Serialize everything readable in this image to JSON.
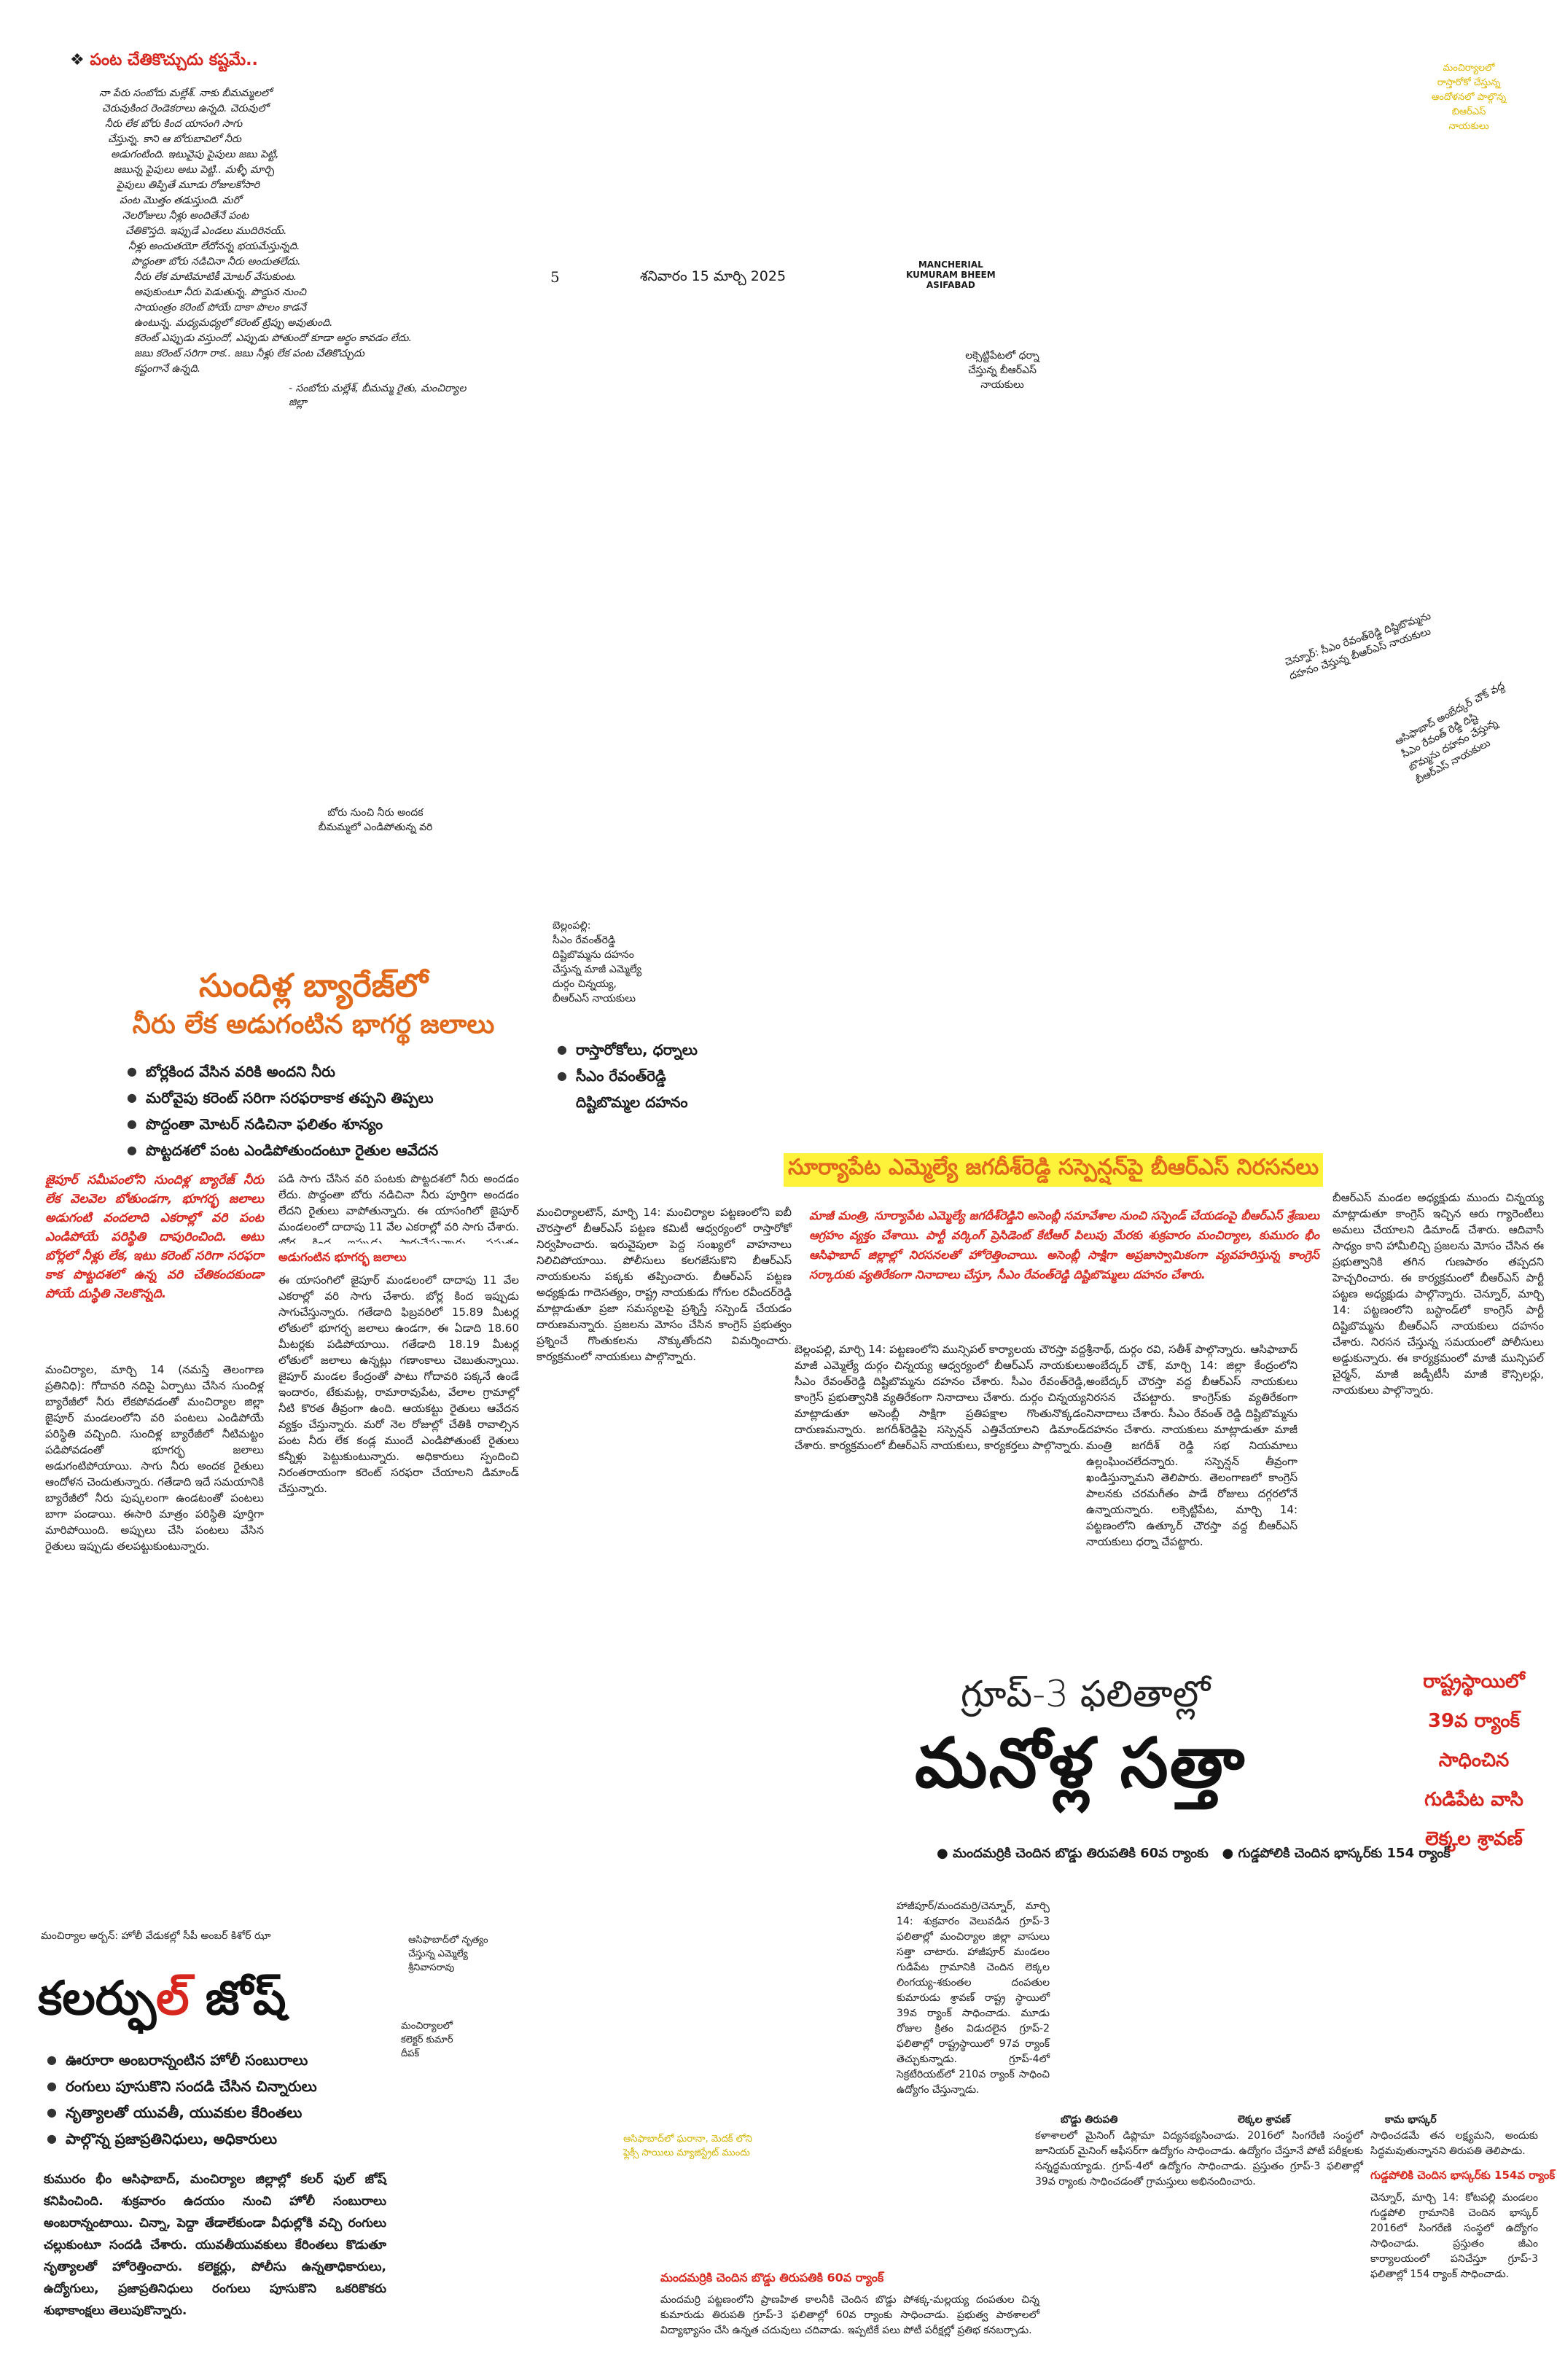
{
  "header": {
    "page_number": "5",
    "date": "శనివారం 15 మార్చి 2025",
    "edition_line1": "MANCHERIAL",
    "edition_line2": "KUMURAM BHEEM",
    "edition_line3": "ASIFABAD"
  },
  "top_quote": {
    "title": "పంట చేతికొచ్చుదు కష్టమే..",
    "lines": [
      "నా పేరు సంబోదు మల్లేశ్. నాకు బీమమ్మలలో",
      "చెరువుకింద రెండెకరాలు ఉన్నది. చెరువులో",
      "నీరు లేక బోరు కింద యాసంగి సాగు",
      "చేస్తున్న. కాని ఆ బోరుబావిలో నీరు",
      "అడుగంటింది. ఇటువైపు పైపులు జబు పెట్టి,",
      "జబున్న పైపులు అటు పెట్టి.. మళ్ళీ మార్చి",
      "పైపులు తిప్పితే మూడు రోజులకోసారి",
      "పంట మొత్తం తడుస్తుంది. మరో",
      "నెలరోజులు నీళ్లు అందితేనే పంట",
      "చేతికొస్తది. ఇప్పుడే ఎండలు ముదిరినయ్.",
      "నీళ్లు అందుతయో లేదోనన్న భయమేస్తున్నది.",
      "పొద్దంతా బోరు నడిచినా నీరు అందుతలేదు.",
      "నీరు లేక మాటిమాటికీ మోటర్ వేసుకుంట.",
      "అపుకుంటూ నీరు పెడుతున్న. పొద్దున నుంచి",
      "సాయంత్రం కరెంట్ పోయే దాకా పొలం కాడనే",
      "ఉంటున్న. మధ్యమధ్యలో కరెంట్ ట్రిప్పు అవుతుంది.",
      "కరెంట్ ఎప్పుడు వస్తుందో, ఎప్పుడు పోతుందో కూడా అర్థం కావడం లేదు.",
      "జబు కరెంట్ సరిగా రాక.. జబు నీళ్లు లేక పంట చేతికొచ్చుదు",
      "కష్టంగానే ఉన్నది."
    ],
    "attribution": "- సంబోదు మల్లేశ్, బీమమ్మ రైతు, మంచిర్యాల జిల్లా"
  },
  "top_right_caption": {
    "lines": [
      "మంచిర్యాలలో",
      "రాస్తారోకో చేస్తున్న",
      "ఆందోళనలో పాల్గొన్న",
      "బిఆర్ఎస్",
      "నాయకులు"
    ]
  },
  "photo_caption_bellampalli": {
    "lines": [
      "లక్సెట్టిపేటలో ధర్నా",
      "చేస్తున్న బీఆర్ఎస్",
      "నాయకులు"
    ]
  },
  "rotated_caption_1": {
    "lines": [
      "చెన్నూర్: సీఎం రేవంత్‌రెడ్డి దిష్టిబొమ్మను",
      "దహనం చేస్తున్న బీఆర్ఎస్ నాయకులు"
    ]
  },
  "rotated_caption_2": {
    "lines": [
      "ఆసిఫాబాద్ అంబేద్కర్ చౌక్ వద్ద",
      "సీఎం రేవంత్ రెడ్డి దిష్టి",
      "బొమ్మను దహనం చేస్తున్న",
      "బీఆర్ఎస్ నాయకులు"
    ]
  },
  "photo_caption_bore": {
    "lines": [
      "బోరు నుంచి నీరు అందక",
      "బీమమ్మలో ఎండిపోతున్న వరి"
    ]
  },
  "photo_caption_bellampalli2": {
    "lines": [
      "బెల్లంపల్లి:",
      "సీఎం రేవంత్‌రెడ్డి",
      "దిష్టిబొమ్మను దహనం",
      "చేస్తున్న మాజీ ఎమ్మెల్యే",
      "దుర్గం చిన్నయ్య,",
      "బీఆర్ఎస్ నాయకులు"
    ]
  },
  "story1": {
    "headline_line1": "సుందిళ్ల బ్యారేజ్‌లో",
    "headline_line2": "నీరు లేక అడుగంటిన భాగర్థ జలాలు",
    "bullets": [
      "బోర్లకింద వేసిన వరికి అందని నీరు",
      "మరోవైపు కరెంట్ సరిగా సరఫరాకాక తప్పని తిప్పలు",
      "పొద్దంతా మోటర్ నడిచినా ఫలితం శూన్యం",
      "పొట్టదశలో పంట ఎండిపోతుందంటూ రైతుల ఆవేదన"
    ],
    "intro": "జైపూర్ సమీపంలోని సుందిళ్ల బ్యారేజ్ నీరు లేక వెలవెల బోతుండగా, భూగర్భ జలాలు అడుగంటి వందలాది ఎకరాల్లో వరి పంట ఎండిపోయే పరిస్థితి దాపురించింది. అటు బోర్లలో నీళ్లు లేక, ఇటు కరెంట్ సరిగా సరఫరా కాక పొట్టదశలో ఉన్న వరి చేతికందకుండా పోయే దుస్థితి నెలకొన్నది.",
    "col1": "మంచిర్యాల, మార్చి 14 (నమస్తే తెలంగాణ ప్రతినిధి): గోదావరి నదిపై ఏర్పాటు చేసిన సుందిళ్ల బ్యారేజీలో నీరు లేకపోవడంతో మంచిర్యాల జిల్లా జైపూర్ మండలంలోని వరి పంటలు ఎండిపోయే పరిస్థితి వచ్చింది. సుందిళ్ల బ్యారేజీలో నీటిమట్టం పడిపోవడంతో భూగర్భ జలాలు అడుగంటిపోయాయి. సాగు నీరు అందక రైతులు ఆందోళన చెందుతున్నారు. గతేడాది ఇదే సమయానికి బ్యారేజీలో నీరు పుష్కలంగా ఉండటంతో పంటలు బాగా పండాయి. ఈసారి మాత్రం పరిస్థితి పూర్తిగా మారిపోయింది. అప్పులు చేసి పంటలు వేసిన రైతులు ఇప్పుడు తలపట్టుకుంటున్నారు.",
    "col2": "పడి సాగు చేసిన వరి పంటకు పొట్టదశలో నీరు అందడం లేదు. పొద్దంతా బోరు నడిచినా నీరు పూర్తిగా అందడం లేదని రైతులు వాపోతున్నారు. ఈ యాసంగిలో జైపూర్ మండలంలో దాదాపు 11 వేల ఎకరాల్లో వరి సాగు చేశారు. బోర్ల కింద ఇప్పుడు సాగుచేస్తున్నారు. ప్రస్తుతం మండలంలో భూగర్భ జలాలు అడుగంటిపోవడంతో వందల ఎకరాల్లో వరి ఎండిపోయే దుస్థితి నెలకొంది. మార్చిలోనే ఎండలు ముదరడంతో నీటి మట్టం మరింత పడిపోతోంది. అధికారులు స్పందించి పంటలు కాపాడాలని రైతులు కోరుతున్నారు.",
    "subhead": "అడుగంటిన భూగర్భ జలాలు",
    "col3": "ఈ యాసంగిలో జైపూర్ మండలంలో దాదాపు 11 వేల ఎకరాల్లో వరి సాగు చేశారు. బోర్ల కింద ఇప్పుడు సాగుచేస్తున్నారు. గతేడాది ఫిబ్రవరిలో 15.89 మీటర్ల లోతులో భూగర్భ జలాలు ఉండగా, ఈ ఏడాది 18.60 మీటర్లకు పడిపోయాయి. గతేడాది 18.19 మీటర్ల లోతులో జలాలు ఉన్నట్లు గణాంకాలు చెబుతున్నాయి. జైపూర్ మండల కేంద్రంతో పాటు గోదావరి పక్కనే ఉండే ఇందారం, టేకుమట్ల, రామారావుపేట, వేలాల గ్రామాల్లో నీటి కొరత తీవ్రంగా ఉంది. ఆయకట్టు రైతులు ఆవేదన వ్యక్తం చేస్తున్నారు. మరో నెల రోజుల్లో చేతికి రావాల్సిన పంట నీరు లేక కండ్ల ముందే ఎండిపోతుంటే రైతులు కన్నీళ్లు పెట్టుకుంటున్నారు. అధికారులు స్పందించి నిరంతరాయంగా కరెంట్ సరఫరా చేయాలని డిమాండ్ చేస్తున్నారు."
  },
  "story2": {
    "headline": "సూర్యాపేట ఎమ్మెల్యే జగదీశ్‌రెడ్డి సస్పెన్షన్‌పై బీఆర్ఎస్ నిరసనలు",
    "bullets": [
      "రాస్తారోకోలు, ధర్నాలు",
      "సీఎం రేవంత్‌రెడ్డి దిష్టిబొమ్మల దహనం"
    ],
    "intro": "మాజీ మంత్రి, సూర్యాపేట ఎమ్మెల్యే జగదీశ్‌రెడ్డిని అసెంబ్లీ సమావేశాల నుంచి సస్పెండ్ చేయడంపై బీఆర్ఎస్ శ్రేణులు ఆగ్రహం వ్యక్తం చేశాయి. పార్టీ వర్కింగ్ ప్రెసిడెంట్ కేటీఆర్ పిలుపు మేరకు శుక్రవారం మంచిర్యాల, కుమురం భీం ఆసిఫాబాద్ జిల్లాల్లో నిరసనలతో హోరెత్తించాయి. అసెంబ్లీ సాక్షిగా అప్రజాస్వామికంగా వ్యవహరిస్తున్న కాంగ్రెస్ సర్కారుకు వ్యతిరేకంగా నినాదాలు చేస్తూ, సీఎం రేవంత్‌రెడ్డి దిష్టిబొమ్మలు దహనం చేశారు.",
    "col1": "మంచిర్యాలటౌన్, మార్చి 14: మంచిర్యాల పట్టణంలోని ఐబీ చౌరస్తాలో బీఆర్ఎస్ పట్టణ కమిటీ ఆధ్వర్యంలో రాస్తారోకో నిర్వహించారు. ఇరువైపులా పెద్ద సంఖ్యలో వాహనాలు నిలిచిపోయాయి. పోలీసులు కలగజేసుకొని బీఆర్ఎస్ నాయకులను పక్కకు తప్పించారు. బీఆర్ఎస్ పట్టణ అధ్యక్షుడు గాదెసత్యం, రాష్ట్ర నాయకుడు గోగుల రవీందర్‌రెడ్డి మాట్లాడుతూ ప్రజా సమస్యలపై ప్రశ్నిస్తే సస్పెండ్ చేయడం దారుణమన్నారు. ప్రజలను మోసం చేసిన కాంగ్రెస్ ప్రభుత్వం ప్రశ్నించే గొంతుకలను నొక్కుతోందని విమర్శించారు. కార్యక్రమంలో నాయకులు పాల్గొన్నారు.",
    "col2": "బెల్లంపల్లి, మార్చి 14: పట్టణంలోని మున్సిపల్ కార్యాలయ చౌరస్తా వద్ద మాజీ ఎమ్మెల్యే దుర్గం చిన్నయ్య ఆధ్వర్యంలో బీఆర్ఎస్ నాయకులు సీఎం రేవంత్‌రెడ్డి దిష్టిబొమ్మను దహనం చేశారు. సీఎం రేవంత్‌రెడ్డి, కాంగ్రెస్ ప్రభుత్వానికి వ్యతిరేకంగా నినాదాలు చేశారు. దుర్గం చిన్నయ్య మాట్లాడుతూ అసెంబ్లీ సాక్షిగా ప్రతిపక్షాల గొంతునొక్కడం దారుణమన్నారు. జగదీశ్‌రెడ్డిపై సస్పెన్షన్ ఎత్తివేయాలని డిమాండ్ చేశారు. కార్యక్రమంలో బీఆర్ఎస్ నాయకులు, కార్యకర్తలు పాల్గొన్నారు.",
    "col3": "శ్రీనాథ్, దుర్గం రవి, సతీశ్ పాల్గొన్నారు. ఆసిఫాబాద్ అంబేద్కర్ చౌక్, మార్చి 14: జిల్లా కేంద్రంలోని అంబేద్కర్ చౌరస్తా వద్ద బీఆర్ఎస్ నాయకులు నిరసన చేపట్టారు. కాంగ్రెస్‌కు వ్యతిరేకంగా నినాదాలు చేశారు. సీఎం రేవంత్ రెడ్డి దిష్టిబొమ్మను దహనం చేశారు. నాయకులు మాట్లాడుతూ మాజీ మంత్రి జగదీశ్ రెడ్డి సభ నియమాలు ఉల్లంఘించలేదన్నారు. సస్పెన్షన్ తీవ్రంగా ఖండిస్తున్నామని తెలిపారు. తెలంగాణలో కాంగ్రెస్ పాలనకు చరమగీతం పాడే రోజులు దగ్గరలోనే ఉన్నాయన్నారు. లక్సెట్టిపేట, మార్చి 14: పట్టణంలోని ఉత్కూర్ చౌరస్తా వద్ద బీఆర్ఎస్ నాయకులు ధర్నా చేపట్టారు.",
    "col4": "బీఆర్ఎస్ మండల అధ్యక్షుడు ముందు చిన్నయ్య మాట్లాడుతూ కాంగ్రెస్ ఇచ్చిన ఆరు గ్యారెంటీలు అమలు చేయాలని డిమాండ్ చేశారు. ఆదివాసీ సాధ్యం కాని హామీలిచ్చి ప్రజలను మోసం చేసిన ఈ ప్రభుత్వానికి తగిన గుణపాఠం తప్పదని హెచ్చరించారు. ఈ కార్యక్రమంలో బీఆర్ఎస్ పార్టీ పట్టణ అధ్యక్షుడు పాల్గొన్నారు. చెన్నూర్, మార్చి 14: పట్టణంలోని బస్టాండ్‌లో కాంగ్రెస్ పార్టీ దిష్టిబొమ్మను బీఆర్ఎస్ నాయకులు దహనం చేశారు. నిరసన చేస్తున్న సమయంలో పోలీసులు అడ్డుకున్నారు. ఈ కార్యక్రమంలో మాజీ మున్సిపల్ చైర్మన్, మాజీ జడ్పీటీసీ మాజీ కౌన్సిలర్లు, నాయకులు పాల్గొన్నారు."
  },
  "story3": {
    "kicker": "గ్రూప్-3 ఫలితాల్లో",
    "headline": "మనోళ్ల సత్తా",
    "side_line1": "రాష్ట్రస్థాయిలో",
    "side_line2": "39వ ర్యాంక్",
    "side_line3": "సాధించిన",
    "side_line4": "గుడిపేట వాసి",
    "side_line5": "లెక్కల శ్రావణ్",
    "bullet1": "మందమర్రికి చెందిన బొడ్డు తిరుపతికి 60వ ర్యాంకు",
    "bullet2": "గుడ్డపోలికి చెందిన భాస్కర్‌కు 154 ర్యాంక్",
    "intro_col": "హాజీపూర్/మందమర్రి/చెన్నూర్, మార్చి 14: శుక్రవారం వెలువడిన గ్రూప్-3 ఫలితాల్లో మంచిర్యాల జిల్లా వాసులు సత్తా చాటారు. హాజీపూర్ మండలం గుడిపేట గ్రామానికి చెందిన లెక్కల లింగయ్య-శకుంతల దంపతుల కుమారుడు శ్రావణ్ రాష్ట్ర స్థాయిలో 39వ ర్యాంక్ సాధించాడు. మూడు రోజుల క్రితం విడుదలైన గ్రూప్-2 ఫలితాల్లో రాష్ట్రస్థాయిలో 97వ ర్యాంక్ తెచ్చుకున్నాడు. గ్రూప్-4లో సెక్రటేరియట్‌లో 210వ ర్యాంక్ సాధించి ఉద్యోగం చేస్తున్నాడు.",
    "photo_caption1": "బొడ్డు తిరుపతి",
    "photo_caption2": "లెక్కల శ్రావణ్",
    "photo_caption3": "కామ భాస్కర్",
    "photo_caption_left": "ఆసిఫాబాద్‌లో ఘరానా, మెదక్ లోని ఫ్లెక్సీ సాయిలు మ్యాజిస్ట్రేట్ ముందు",
    "sub_head_mandamarri": "మందమర్రికి చెందిన బొడ్డు తిరుపతికి 60వ ర్యాంక్",
    "col_mandamarri": "మందమర్రి పట్టణంలోని ప్రాణహిత కాలనీకి చెందిన బొడ్డు పోశక్క-మల్లయ్య దంపతుల చిన్న కుమారుడు తిరుపతి గ్రూప్-3 ఫలితాల్లో 60వ ర్యాంకు సాధించాడు. ప్రభుత్వ పాఠశాలలో విద్యాభ్యాసం చేసి ఉన్నత చదువులు చదివాడు. ఇప్పటికే పలు పోటీ పరీక్షల్లో ప్రతిభ కనబర్చాడు.",
    "col_sravan": "కళాశాలలో మైనింగ్ డిప్లొమా విద్యనభ్యసించాడు. 2016లో సింగరేణి సంస్థలో జూనియర్ మైనింగ్ ఆఫీసర్‌గా ఉద్యోగం సాధించాడు. ఉద్యోగం చేస్తూనే పోటీ పరీక్షలకు సన్నద్ధమయ్యాడు. గ్రూప్-4లో ఉద్యోగం సాధించాడు. ప్రస్తుతం గ్రూప్-3 ఫలితాల్లో 39వ ర్యాంకు సాధించడంతో గ్రామస్తులు అభినందించారు.",
    "col_bhaskar": "సాధించడమే తన లక్ష్యమని, అందుకు సిద్ధమవుతున్నానని తిరుపతి తెలిపాడు.",
    "sub_head_bhaskar": "గుడ్డపోలికి చెందిన భాస్కర్‌కు 154వ ర్యాంక్",
    "col_bhaskar2": "చెన్నూర్, మార్చి 14: కోటపల్లి మండలం గుడ్డపోలి గ్రామానికి చెందిన భాస్కర్ 2016లో సింగరేణి సంస్థలో ఉద్యోగం సాధించాడు. ప్రస్తుతం జీఎం కార్యాలయంలో పనిచేస్తూ గ్రూప్-3 ఫలితాల్లో 154 ర్యాంక్ సాధించాడు."
  },
  "story4": {
    "kicker": "మంచిర్యాల అర్బన్: హోలీ వేడుకల్లో సీపీ అంబర్ కిశోర్ ఝా",
    "headline_part1": "కలర్",
    "headline_part2": "ఫుల్",
    "headline_part3": "జోష్",
    "caption1_lines": [
      "ఆసిఫాబాద్‌లో నృత్యం",
      "చేస్తున్న ఎమ్మెల్యే",
      "శ్రీనివాసరావు"
    ],
    "caption2_lines": [
      "మంచిర్యాలలో",
      "కలెక్టర్ కుమార్",
      "దీపక్"
    ],
    "bullets": [
      "ఊరూరా అంబరాన్నంటిన హోలీ సంబురాలు",
      "రంగులు పూసుకొని సందడి చేసిన చిన్నారులు",
      "నృత్యాలతో యువతీ, యువకుల కేరింతలు",
      "పాల్గొన్న ప్రజాప్రతినిధులు, అధికారులు"
    ],
    "intro": "కుమురం భీం ఆసిఫాబాద్, మంచిర్యాల జిల్లాల్లో కలర్ ఫుల్ జోష్ కనిపించింది. శుక్రవారం ఉదయం నుంచి హోలీ సంబురాలు అంబరాన్నంటాయి. చిన్నా, పెద్దా తేడాలేకుండా వీధుల్లోకి వచ్చి రంగులు చల్లుకుంటూ సందడి చేశారు. యువతీయువకులు కేరింతలు కొడుతూ నృత్యాలతో హోరెత్తించారు. కలెక్టర్లు, పోలీసు ఉన్నతాధికారులు, ఉద్యోగులు, ప్రజాప్రతినిధులు రంగులు పూసుకొని ఒకరికొకరు శుభాకాంక్షలు తెలుపుకొన్నారు."
  }
}
